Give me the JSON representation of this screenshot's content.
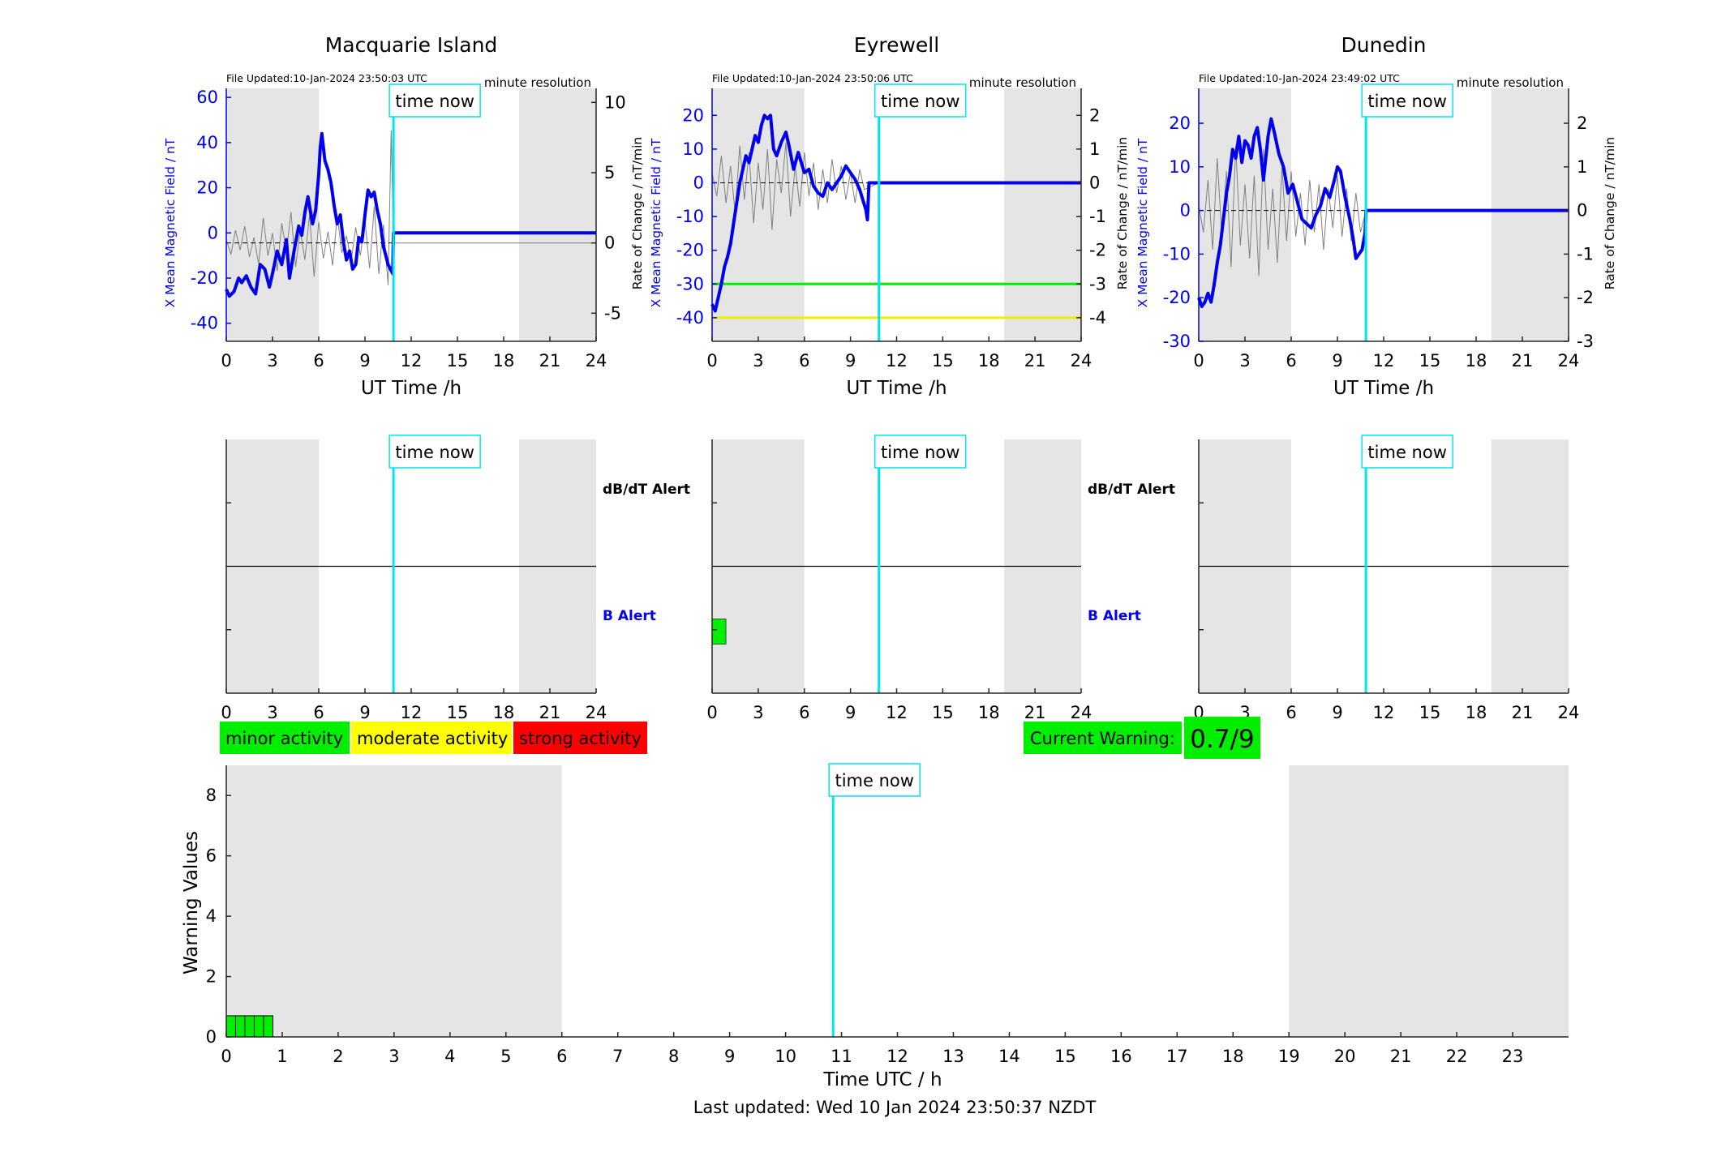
{
  "colors": {
    "shade": "#e5e5e5",
    "x_series": "#0000ee",
    "rate_series": "#808080",
    "time_now": "#00e5ee",
    "thresh_green": "#00ee00",
    "thresh_yellow": "#eeee00",
    "minor": "#00ee00",
    "moderate": "#ffff00",
    "strong": "#ff0000",
    "axis": "#262626"
  },
  "time_now_label": "time now",
  "time_now_value": 10.85,
  "panels": [
    {
      "title": "Macquarie Island",
      "file_updated": "File Updated:10-Jan-2024 23:50:03 UTC",
      "resolution": "minute resolution",
      "ylabel_left": "X Mean Magnetic Field / nT",
      "ylabel_right": "Rate of Change / nT/min",
      "xlabel": "UT Time /h",
      "xlim": [
        0,
        24
      ],
      "xticks": [
        0,
        3,
        6,
        9,
        12,
        15,
        18,
        21,
        24
      ],
      "ylim_left": [
        -48,
        64
      ],
      "yticks_left": [
        -40,
        -20,
        0,
        20,
        40,
        60
      ],
      "ylim_right": [
        -7,
        11
      ],
      "yticks_right": [
        -5,
        0,
        5,
        10
      ],
      "shade": [
        [
          0,
          6
        ],
        [
          19,
          24
        ]
      ],
      "x_series": [
        [
          0,
          -25
        ],
        [
          0.2,
          -28
        ],
        [
          0.5,
          -26
        ],
        [
          0.8,
          -20
        ],
        [
          1.0,
          -22
        ],
        [
          1.3,
          -19
        ],
        [
          1.6,
          -24
        ],
        [
          1.9,
          -27
        ],
        [
          2.2,
          -14
        ],
        [
          2.5,
          -16
        ],
        [
          2.8,
          -24
        ],
        [
          3.0,
          -18
        ],
        [
          3.3,
          -8
        ],
        [
          3.6,
          -14
        ],
        [
          3.9,
          -3
        ],
        [
          4.1,
          -20
        ],
        [
          4.4,
          -8
        ],
        [
          4.7,
          3
        ],
        [
          4.9,
          -1
        ],
        [
          5.1,
          9
        ],
        [
          5.3,
          16
        ],
        [
          5.6,
          4
        ],
        [
          5.8,
          10
        ],
        [
          6.0,
          26
        ],
        [
          6.1,
          38
        ],
        [
          6.2,
          44
        ],
        [
          6.4,
          32
        ],
        [
          6.6,
          28
        ],
        [
          6.8,
          22
        ],
        [
          7.0,
          12
        ],
        [
          7.2,
          4
        ],
        [
          7.4,
          8
        ],
        [
          7.6,
          -4
        ],
        [
          7.8,
          -12
        ],
        [
          8.0,
          -8
        ],
        [
          8.2,
          -16
        ],
        [
          8.4,
          -14
        ],
        [
          8.6,
          -2
        ],
        [
          8.8,
          -4
        ],
        [
          9.0,
          8
        ],
        [
          9.2,
          19
        ],
        [
          9.4,
          16
        ],
        [
          9.6,
          18
        ],
        [
          9.8,
          10
        ],
        [
          10.0,
          4
        ],
        [
          10.2,
          -6
        ],
        [
          10.5,
          -14
        ],
        [
          10.8,
          -18
        ],
        [
          10.85,
          0
        ],
        [
          24,
          0
        ]
      ],
      "rate_series": [
        [
          0,
          0.2
        ],
        [
          0.3,
          -0.8
        ],
        [
          0.6,
          0.9
        ],
        [
          0.9,
          -0.5
        ],
        [
          1.2,
          1.2
        ],
        [
          1.5,
          -1.0
        ],
        [
          1.8,
          0.4
        ],
        [
          2.1,
          -1.5
        ],
        [
          2.4,
          1.8
        ],
        [
          2.7,
          -0.9
        ],
        [
          3.0,
          0.7
        ],
        [
          3.3,
          -2.0
        ],
        [
          3.6,
          1.4
        ],
        [
          3.9,
          -0.6
        ],
        [
          4.2,
          2.2
        ],
        [
          4.5,
          -1.7
        ],
        [
          4.8,
          0.9
        ],
        [
          5.1,
          -1.2
        ],
        [
          5.4,
          2.0
        ],
        [
          5.7,
          -2.4
        ],
        [
          6.0,
          1.5
        ],
        [
          6.3,
          -1.1
        ],
        [
          6.6,
          0.8
        ],
        [
          6.9,
          -1.6
        ],
        [
          7.2,
          1.9
        ],
        [
          7.5,
          -0.7
        ],
        [
          7.8,
          0.5
        ],
        [
          8.1,
          -1.3
        ],
        [
          8.4,
          1.1
        ],
        [
          8.7,
          -0.9
        ],
        [
          9.0,
          1.6
        ],
        [
          9.3,
          -1.8
        ],
        [
          9.6,
          2.6
        ],
        [
          9.9,
          -2.2
        ],
        [
          10.2,
          1.3
        ],
        [
          10.5,
          -3.0
        ],
        [
          10.7,
          8.0
        ],
        [
          10.85,
          0
        ],
        [
          24,
          0
        ]
      ],
      "thresholds": []
    },
    {
      "title": "Eyrewell",
      "file_updated": "File Updated:10-Jan-2024 23:50:06 UTC",
      "resolution": "minute resolution",
      "ylabel_left": "X Mean Magnetic Field / nT",
      "ylabel_right": "Rate of Change / nT/min",
      "xlabel": "UT Time /h",
      "xlim": [
        0,
        24
      ],
      "xticks": [
        0,
        3,
        6,
        9,
        12,
        15,
        18,
        21,
        24
      ],
      "ylim_left": [
        -47,
        28
      ],
      "yticks_left": [
        -40,
        -30,
        -20,
        -10,
        0,
        10,
        20
      ],
      "ylim_right": [
        -4.7,
        2.8
      ],
      "yticks_right": [
        -4,
        -3,
        -2,
        -1,
        0,
        1,
        2
      ],
      "shade": [
        [
          0,
          6
        ],
        [
          19,
          24
        ]
      ],
      "x_series": [
        [
          0,
          -36
        ],
        [
          0.2,
          -38
        ],
        [
          0.4,
          -34
        ],
        [
          0.6,
          -30
        ],
        [
          0.8,
          -25
        ],
        [
          1.0,
          -22
        ],
        [
          1.2,
          -18
        ],
        [
          1.4,
          -12
        ],
        [
          1.6,
          -6
        ],
        [
          1.8,
          0
        ],
        [
          2.0,
          4
        ],
        [
          2.2,
          8
        ],
        [
          2.4,
          6
        ],
        [
          2.6,
          10
        ],
        [
          2.8,
          14
        ],
        [
          3.0,
          12
        ],
        [
          3.2,
          17
        ],
        [
          3.4,
          20
        ],
        [
          3.6,
          19
        ],
        [
          3.8,
          20
        ],
        [
          4.0,
          10
        ],
        [
          4.2,
          8
        ],
        [
          4.5,
          12
        ],
        [
          4.8,
          15
        ],
        [
          5.0,
          11
        ],
        [
          5.3,
          4
        ],
        [
          5.6,
          9
        ],
        [
          6.0,
          3
        ],
        [
          6.3,
          4
        ],
        [
          6.6,
          -1
        ],
        [
          6.9,
          -3
        ],
        [
          7.2,
          -4
        ],
        [
          7.5,
          0
        ],
        [
          7.8,
          -2
        ],
        [
          8.1,
          0
        ],
        [
          8.4,
          2
        ],
        [
          8.7,
          5
        ],
        [
          9.0,
          3
        ],
        [
          9.3,
          1
        ],
        [
          9.6,
          -2
        ],
        [
          9.8,
          -5
        ],
        [
          10.0,
          -8
        ],
        [
          10.1,
          -11
        ],
        [
          10.2,
          0
        ],
        [
          10.85,
          0
        ],
        [
          24,
          0
        ]
      ],
      "rate_series": [
        [
          0,
          0.3
        ],
        [
          0.3,
          -0.4
        ],
        [
          0.6,
          0.8
        ],
        [
          0.9,
          -0.6
        ],
        [
          1.2,
          0.5
        ],
        [
          1.5,
          -0.9
        ],
        [
          1.8,
          1.1
        ],
        [
          2.1,
          -0.5
        ],
        [
          2.4,
          0.9
        ],
        [
          2.7,
          -1.2
        ],
        [
          3.0,
          0.6
        ],
        [
          3.3,
          -0.8
        ],
        [
          3.6,
          1.0
        ],
        [
          3.9,
          -1.4
        ],
        [
          4.2,
          0.7
        ],
        [
          4.5,
          -0.3
        ],
        [
          4.8,
          1.2
        ],
        [
          5.1,
          -1.0
        ],
        [
          5.4,
          0.5
        ],
        [
          5.7,
          -0.7
        ],
        [
          6.0,
          0.9
        ],
        [
          6.3,
          -0.4
        ],
        [
          6.6,
          0.6
        ],
        [
          6.9,
          -0.8
        ],
        [
          7.2,
          0.4
        ],
        [
          7.5,
          -0.6
        ],
        [
          7.8,
          0.7
        ],
        [
          8.1,
          -0.3
        ],
        [
          8.4,
          0.5
        ],
        [
          8.7,
          -0.5
        ],
        [
          9.0,
          0.3
        ],
        [
          9.3,
          -0.6
        ],
        [
          9.6,
          0.4
        ],
        [
          9.9,
          -0.2
        ],
        [
          10.85,
          0
        ],
        [
          24,
          0
        ]
      ],
      "thresholds": [
        {
          "value": -30,
          "color": "#00ee00"
        },
        {
          "value": -40,
          "color": "#eeee00"
        }
      ]
    },
    {
      "title": "Dunedin",
      "file_updated": "File Updated:10-Jan-2024 23:49:02 UTC",
      "resolution": "minute resolution",
      "ylabel_left": "X Mean Magnetic Field / nT",
      "ylabel_right": "Rate of Change / nT/min",
      "xlabel": "UT Time /h",
      "xlim": [
        0,
        24
      ],
      "xticks": [
        0,
        3,
        6,
        9,
        12,
        15,
        18,
        21,
        24
      ],
      "ylim_left": [
        -30,
        28
      ],
      "yticks_left": [
        -30,
        -20,
        -10,
        0,
        10,
        20
      ],
      "ylim_right": [
        -3,
        2.8
      ],
      "yticks_right": [
        -3,
        -2,
        -1,
        0,
        1,
        2
      ],
      "shade": [
        [
          0,
          6
        ],
        [
          19,
          24
        ]
      ],
      "x_series": [
        [
          0,
          -20
        ],
        [
          0.2,
          -22
        ],
        [
          0.4,
          -21
        ],
        [
          0.6,
          -19
        ],
        [
          0.8,
          -21
        ],
        [
          1.0,
          -17
        ],
        [
          1.2,
          -12
        ],
        [
          1.4,
          -8
        ],
        [
          1.6,
          -2
        ],
        [
          1.8,
          4
        ],
        [
          2.0,
          8
        ],
        [
          2.2,
          14
        ],
        [
          2.4,
          12
        ],
        [
          2.6,
          17
        ],
        [
          2.8,
          11
        ],
        [
          3.0,
          16
        ],
        [
          3.2,
          15
        ],
        [
          3.4,
          12
        ],
        [
          3.6,
          17
        ],
        [
          3.8,
          19
        ],
        [
          4.0,
          14
        ],
        [
          4.2,
          7
        ],
        [
          4.5,
          17
        ],
        [
          4.7,
          21
        ],
        [
          4.9,
          18
        ],
        [
          5.2,
          13
        ],
        [
          5.5,
          10
        ],
        [
          5.8,
          4
        ],
        [
          6.1,
          6
        ],
        [
          6.4,
          2
        ],
        [
          6.7,
          -2
        ],
        [
          7.0,
          -3
        ],
        [
          7.3,
          -4
        ],
        [
          7.6,
          -1
        ],
        [
          7.9,
          1
        ],
        [
          8.2,
          5
        ],
        [
          8.5,
          3
        ],
        [
          8.8,
          7
        ],
        [
          9.0,
          10
        ],
        [
          9.2,
          9
        ],
        [
          9.5,
          3
        ],
        [
          9.8,
          -2
        ],
        [
          10.0,
          -6
        ],
        [
          10.2,
          -11
        ],
        [
          10.4,
          -10
        ],
        [
          10.6,
          -9
        ],
        [
          10.8,
          -5
        ],
        [
          10.85,
          0
        ],
        [
          24,
          0
        ]
      ],
      "rate_series": [
        [
          0,
          0.1
        ],
        [
          0.3,
          -0.5
        ],
        [
          0.6,
          0.7
        ],
        [
          0.9,
          -0.9
        ],
        [
          1.2,
          1.2
        ],
        [
          1.5,
          -0.6
        ],
        [
          1.8,
          0.9
        ],
        [
          2.1,
          -1.3
        ],
        [
          2.4,
          1.5
        ],
        [
          2.7,
          -0.8
        ],
        [
          3.0,
          0.6
        ],
        [
          3.3,
          -1.1
        ],
        [
          3.6,
          0.8
        ],
        [
          3.9,
          -1.5
        ],
        [
          4.2,
          1.4
        ],
        [
          4.5,
          -0.9
        ],
        [
          4.8,
          0.5
        ],
        [
          5.1,
          -1.2
        ],
        [
          5.4,
          1.0
        ],
        [
          5.7,
          -0.7
        ],
        [
          6.0,
          0.9
        ],
        [
          6.3,
          -0.6
        ],
        [
          6.6,
          0.4
        ],
        [
          6.9,
          -0.8
        ],
        [
          7.2,
          0.7
        ],
        [
          7.5,
          -0.5
        ],
        [
          7.8,
          0.6
        ],
        [
          8.1,
          -0.9
        ],
        [
          8.4,
          0.5
        ],
        [
          8.7,
          -0.4
        ],
        [
          9.0,
          0.8
        ],
        [
          9.3,
          -0.6
        ],
        [
          9.6,
          0.5
        ],
        [
          9.9,
          -0.7
        ],
        [
          10.2,
          0.4
        ],
        [
          10.5,
          -0.5
        ],
        [
          10.85,
          0
        ],
        [
          24,
          0
        ]
      ],
      "thresholds": []
    }
  ],
  "alerts": {
    "dbdt_label": "dB/dT Alert",
    "b_label": "B Alert",
    "xticks": [
      0,
      3,
      6,
      9,
      12,
      15,
      18,
      21,
      24
    ],
    "panels": [
      {
        "name": "Macquarie Island",
        "b_alert_bars": [],
        "shade": [
          [
            0,
            6
          ],
          [
            19,
            24
          ]
        ]
      },
      {
        "name": "Eyrewell",
        "b_alert_bars": [
          [
            0,
            0.9
          ]
        ],
        "shade": [
          [
            0,
            6
          ],
          [
            19,
            24
          ]
        ]
      },
      {
        "name": "Dunedin",
        "b_alert_bars": [],
        "shade": [
          [
            0,
            6
          ],
          [
            19,
            24
          ]
        ]
      }
    ]
  },
  "legend": [
    {
      "label": "minor activity",
      "color": "#00ee00"
    },
    {
      "label": "moderate activity",
      "color": "#ffff00"
    },
    {
      "label": "strong activity",
      "color": "#ff0000"
    }
  ],
  "current_warning": {
    "label": "Current Warning:",
    "value": "0.7/9"
  },
  "warning_chart": {
    "ylabel": "Warning Values",
    "xlabel": "Time UTC / h",
    "xlim": [
      0,
      24
    ],
    "xticks": [
      0,
      1,
      2,
      3,
      4,
      5,
      6,
      7,
      8,
      9,
      10,
      11,
      12,
      13,
      14,
      15,
      16,
      17,
      18,
      19,
      20,
      21,
      22,
      23
    ],
    "ylim": [
      0,
      9
    ],
    "yticks": [
      0,
      2,
      4,
      6,
      8
    ],
    "shade": [
      [
        0,
        6
      ],
      [
        19,
        24
      ]
    ],
    "bars_width": 0.1667,
    "bars": [
      [
        0.0,
        0.7
      ],
      [
        0.1667,
        0.7
      ],
      [
        0.3333,
        0.7
      ],
      [
        0.5,
        0.7
      ],
      [
        0.6667,
        0.7
      ]
    ]
  },
  "footer": "Last updated: Wed 10 Jan 2024 23:50:37 NZDT"
}
